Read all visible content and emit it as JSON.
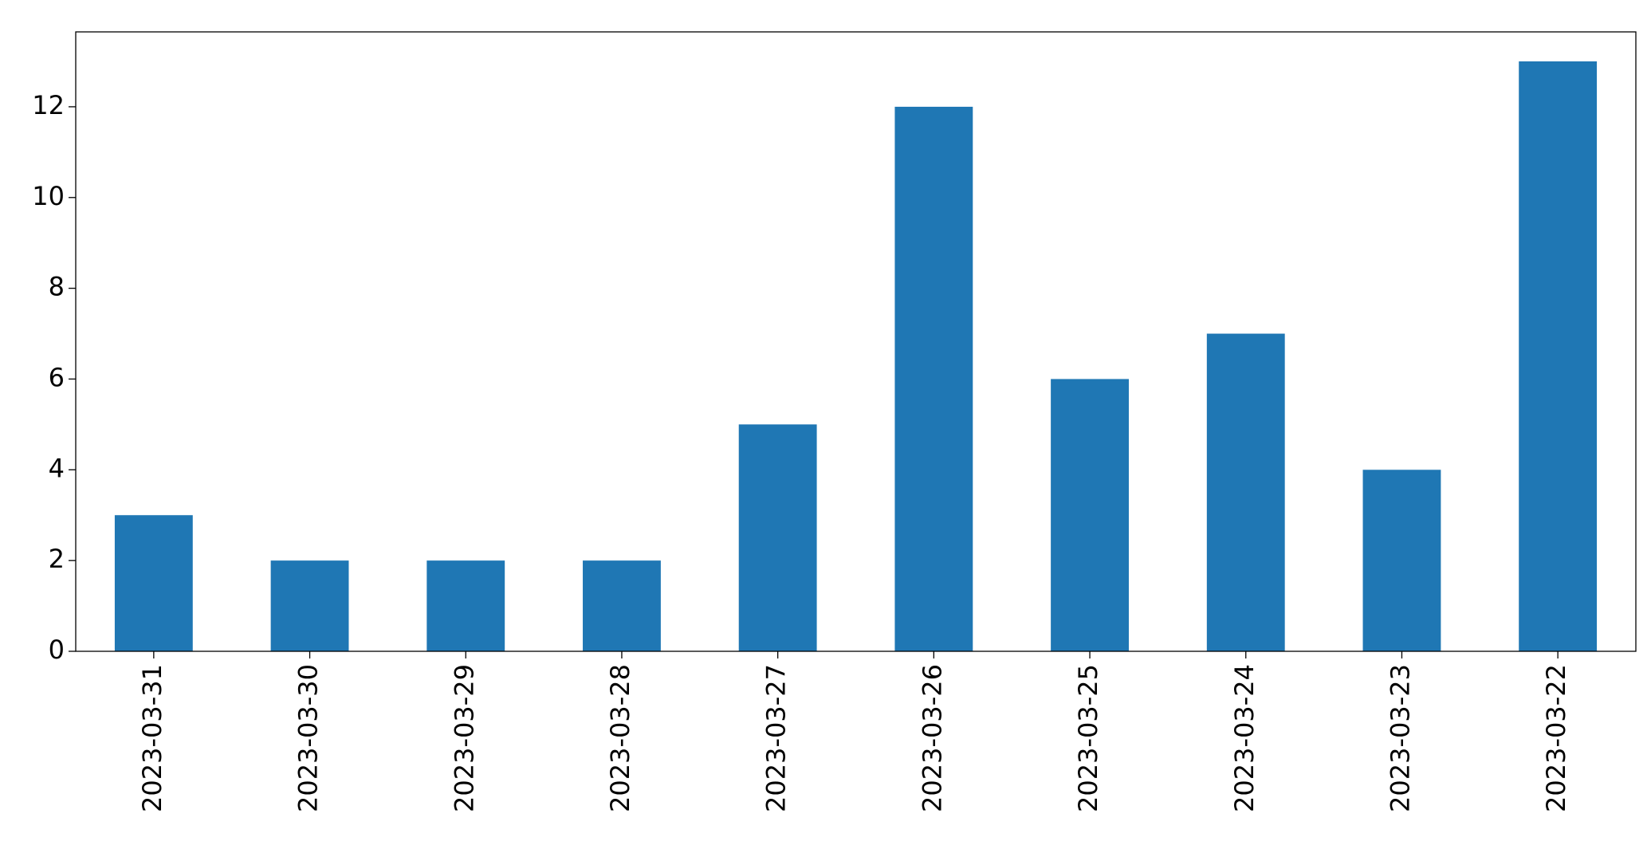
{
  "chart_data": {
    "type": "bar",
    "categories": [
      "2023-03-31",
      "2023-03-30",
      "2023-03-29",
      "2023-03-28",
      "2023-03-27",
      "2023-03-26",
      "2023-03-25",
      "2023-03-24",
      "2023-03-23",
      "2023-03-22"
    ],
    "values": [
      3,
      2,
      2,
      2,
      5,
      12,
      6,
      7,
      4,
      13
    ],
    "color": "#1f77b4",
    "ylim": [
      0,
      13.65
    ],
    "yticks": [
      0,
      2,
      4,
      6,
      8,
      10,
      12
    ],
    "grid": false
  }
}
